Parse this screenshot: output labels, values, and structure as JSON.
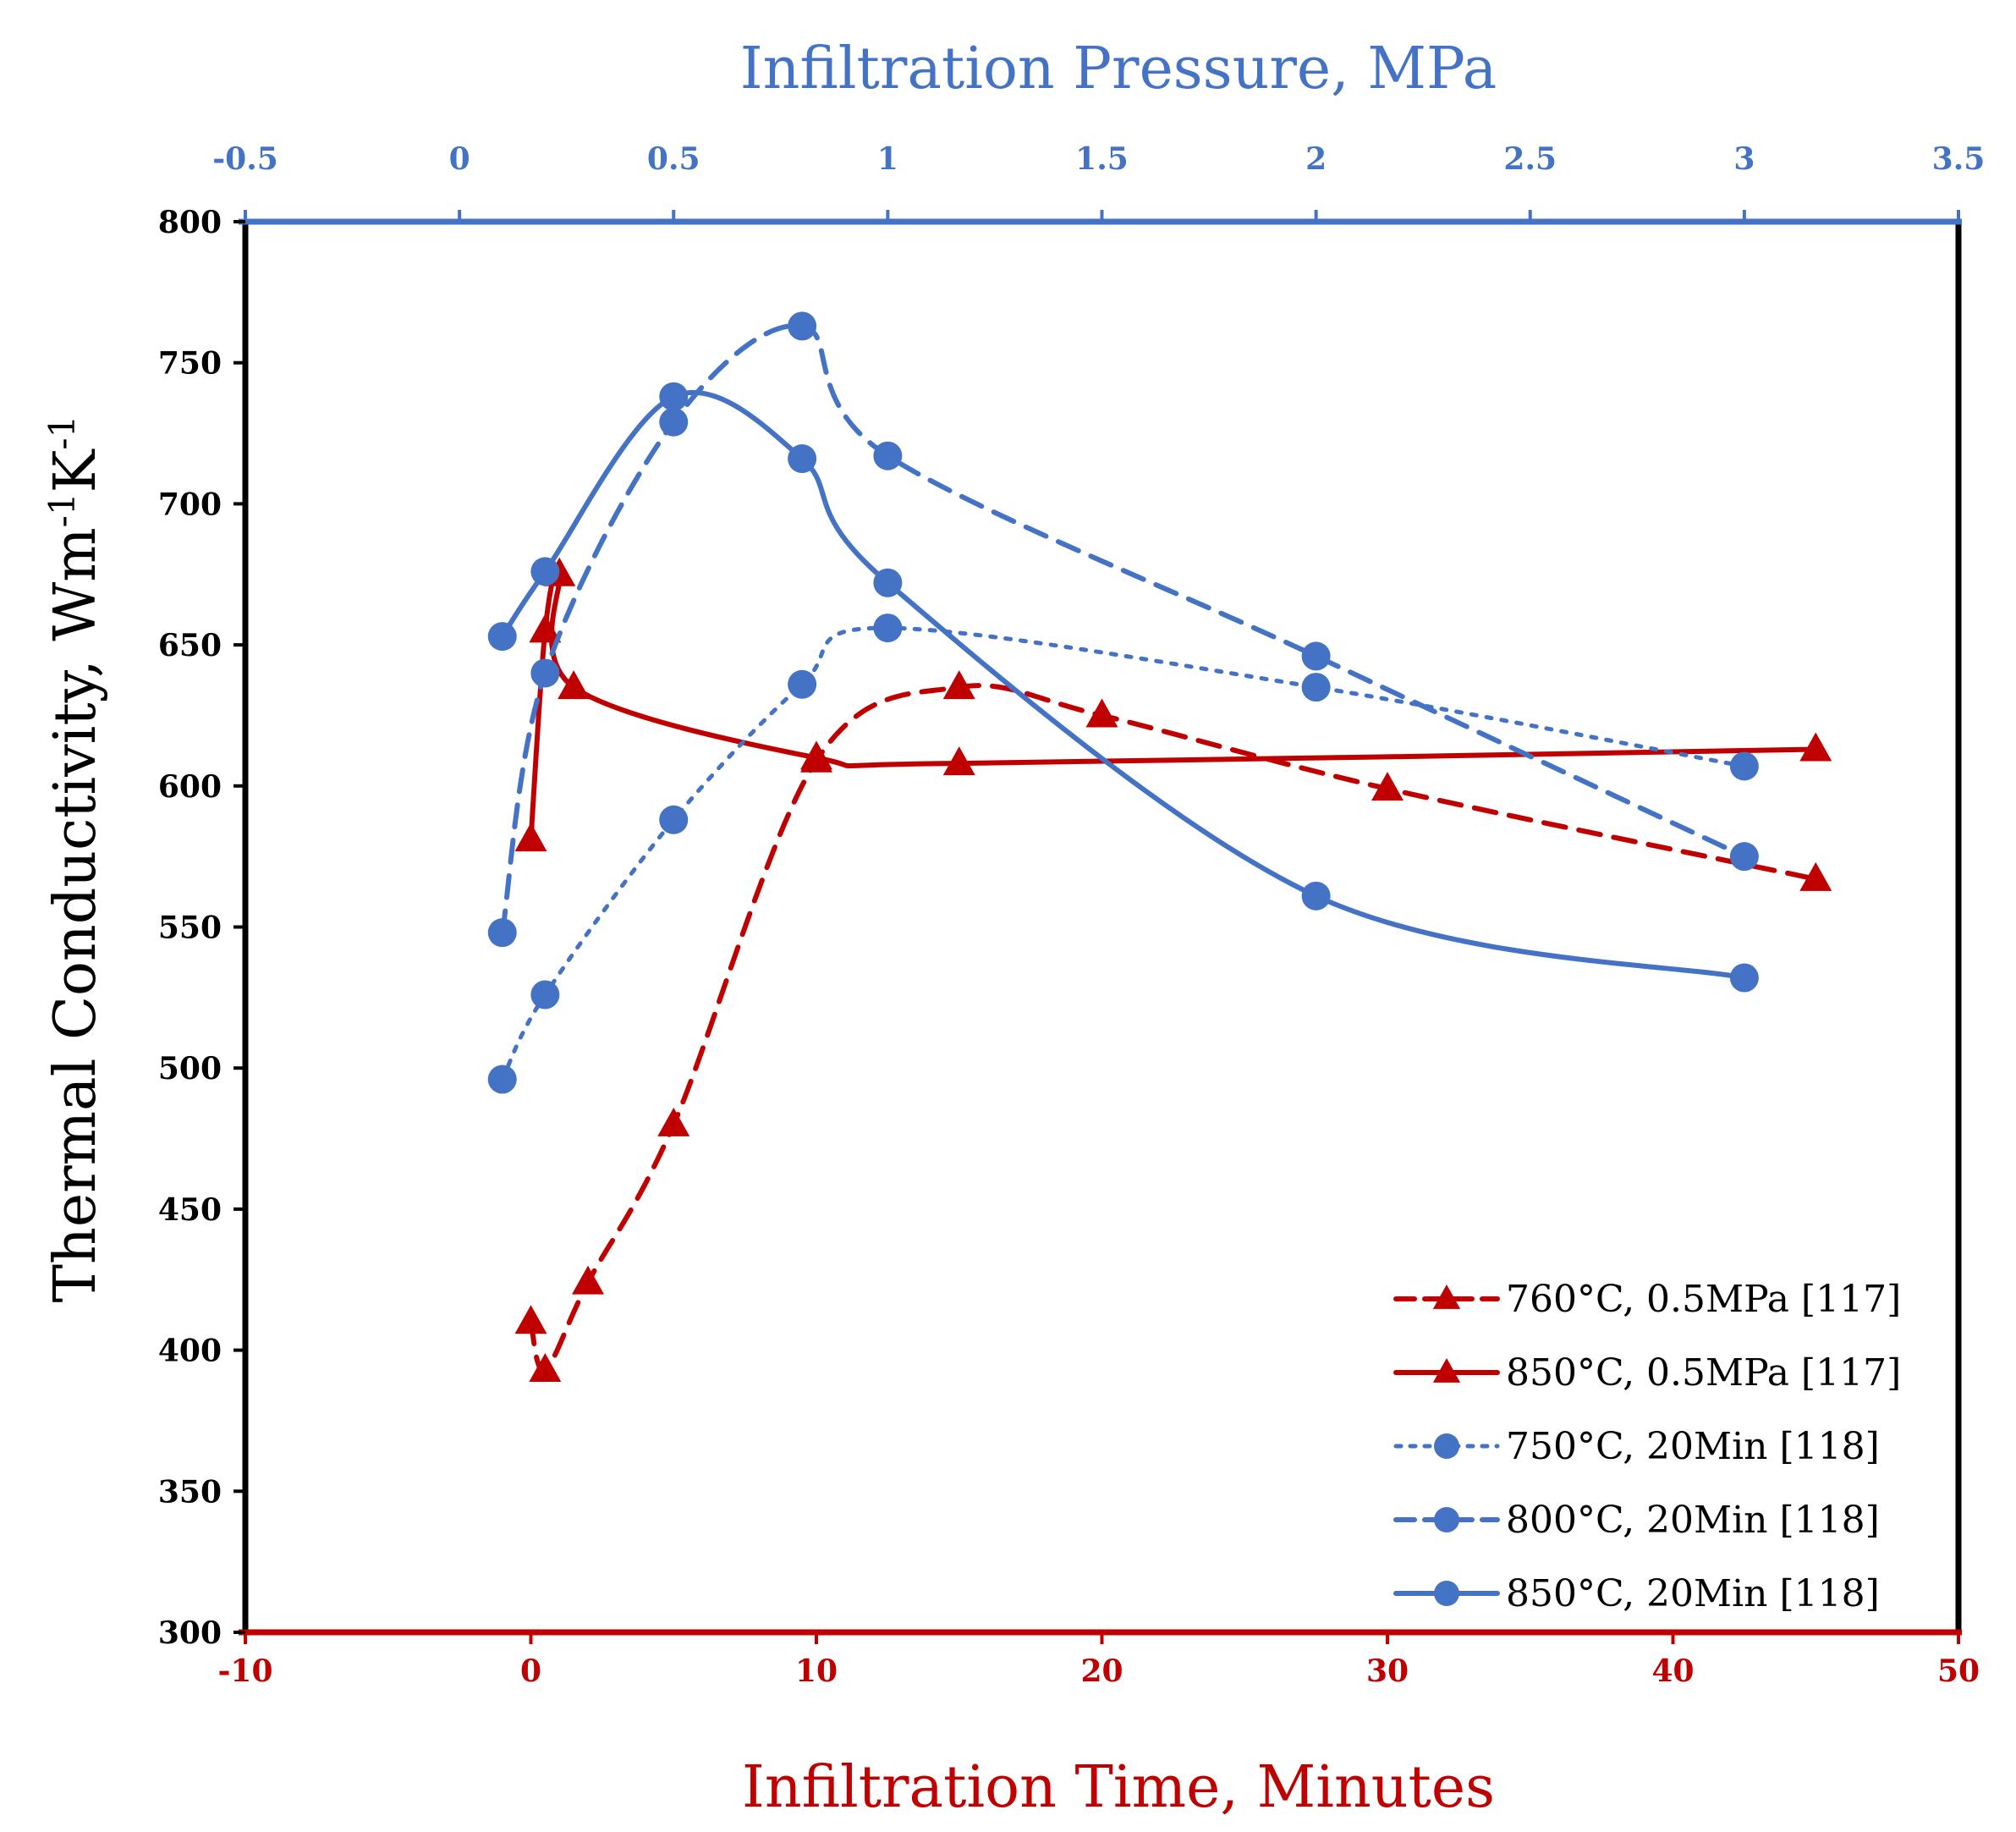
{
  "chart_data": {
    "type": "line",
    "xlabel": "Infiltration Time, Minutes",
    "x2label": "Infiltration Pressure, MPa",
    "ylabel": "Thermal Conductivity, Wm",
    "ylabel_sup1": "-1",
    "ylabel_mid": "K",
    "ylabel_sup2": "-1",
    "xlim": [
      -10,
      50
    ],
    "x2lim": [
      -0.5,
      3.5
    ],
    "ylim": [
      300,
      800
    ],
    "xticks": [
      "-10",
      "0",
      "10",
      "20",
      "30",
      "40",
      "50"
    ],
    "x2ticks": [
      "-0.5",
      "0",
      "0.5",
      "1",
      "1.5",
      "2",
      "2.5",
      "3",
      "3.5"
    ],
    "yticks": [
      "300",
      "350",
      "400",
      "450",
      "500",
      "550",
      "600",
      "650",
      "700",
      "750",
      "800"
    ],
    "legend_position": "bottom-right",
    "colors": {
      "red": "#c00000",
      "blue": "#4472c4",
      "axis": "#000000"
    },
    "series": [
      {
        "name": "760°C, 0.5MPa [117]",
        "axis": "time",
        "line": "dashed",
        "marker": "triangle",
        "color": "#c00000",
        "x": [
          0,
          0.5,
          2,
          5,
          10,
          15,
          20,
          30,
          45
        ],
        "y": [
          410,
          393,
          424,
          480,
          609,
          635,
          625,
          599,
          567
        ]
      },
      {
        "name": "850°C, 0.5MPa [117]",
        "axis": "time",
        "line": "solid",
        "marker": "triangle",
        "color": "#c00000",
        "x": [
          0,
          0.5,
          1,
          1.5,
          10,
          15,
          45
        ],
        "y": [
          581,
          655,
          675,
          635,
          610,
          608,
          613
        ]
      },
      {
        "name": "750°C, 20Min [118]",
        "axis": "pressure",
        "line": "dotted",
        "marker": "circle",
        "color": "#4472c4",
        "x": [
          0.1,
          0.2,
          0.5,
          0.8,
          1.0,
          2.0,
          3.0
        ],
        "y": [
          496,
          526,
          588,
          636,
          656,
          635,
          607
        ]
      },
      {
        "name": "800°C, 20Min [118]",
        "axis": "pressure",
        "line": "dashed",
        "marker": "circle",
        "color": "#4472c4",
        "x": [
          0.1,
          0.2,
          0.5,
          0.8,
          1.0,
          2.0,
          3.0
        ],
        "y": [
          548,
          640,
          729,
          763,
          717,
          646,
          575
        ]
      },
      {
        "name": "850°C, 20Min [118]",
        "axis": "pressure",
        "line": "solid",
        "marker": "circle",
        "color": "#4472c4",
        "x": [
          0.1,
          0.2,
          0.5,
          0.8,
          1.0,
          2.0,
          3.0
        ],
        "y": [
          653,
          676,
          738,
          716,
          672,
          561,
          532
        ]
      }
    ]
  }
}
